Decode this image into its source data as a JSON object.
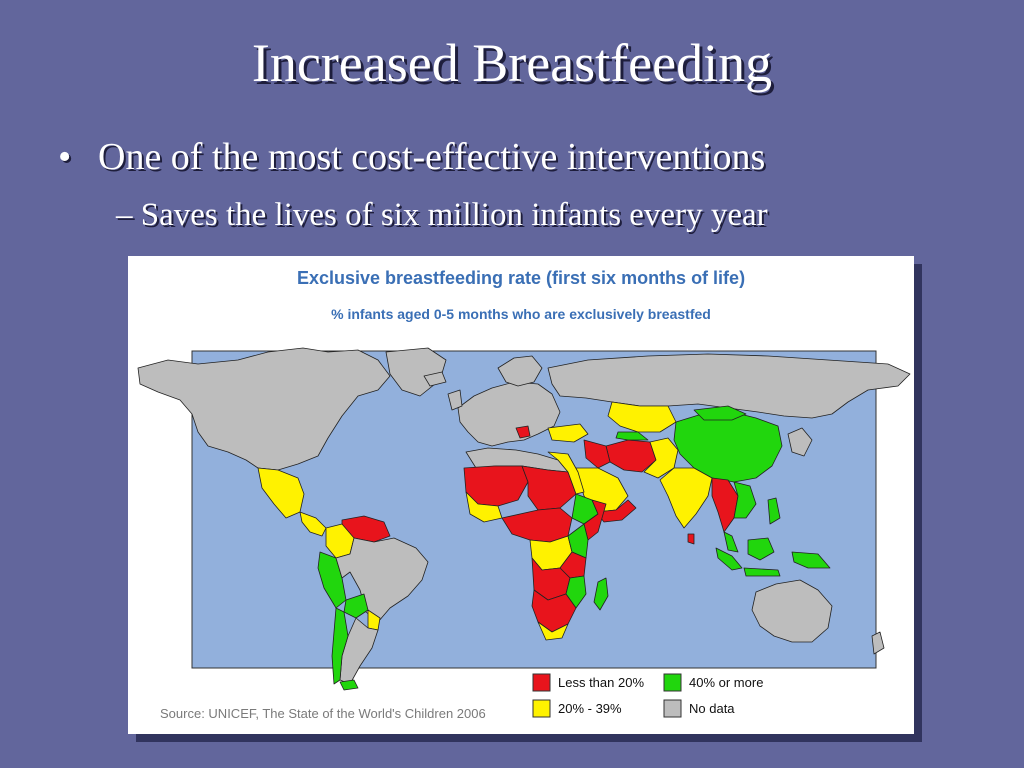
{
  "slide": {
    "title": "Increased Breastfeeding",
    "bullet_marker": "•",
    "bullet": "One of the most cost-effective interventions",
    "sub_bullet": "– Saves the lives of six million infants every year"
  },
  "figure": {
    "title": "Exclusive breastfeeding rate (first six months of life)",
    "subtitle": "% infants aged 0-5 months who are exclusively breastfed",
    "source": "Source: UNICEF, The State of the World's Children 2006",
    "legend": [
      {
        "label": "Less than 20%",
        "color": "#e8141c"
      },
      {
        "label": "40% or more",
        "color": "#21d60d"
      },
      {
        "label": "20% - 39%",
        "color": "#fff200"
      },
      {
        "label": "No data",
        "color": "#bdbdbd"
      }
    ],
    "colors": {
      "ocean": "#92b0dc",
      "no_data": "#bdbdbd",
      "low": "#e8141c",
      "mid": "#fff200",
      "high": "#21d60d",
      "title_text": "#3a6fb5"
    }
  }
}
